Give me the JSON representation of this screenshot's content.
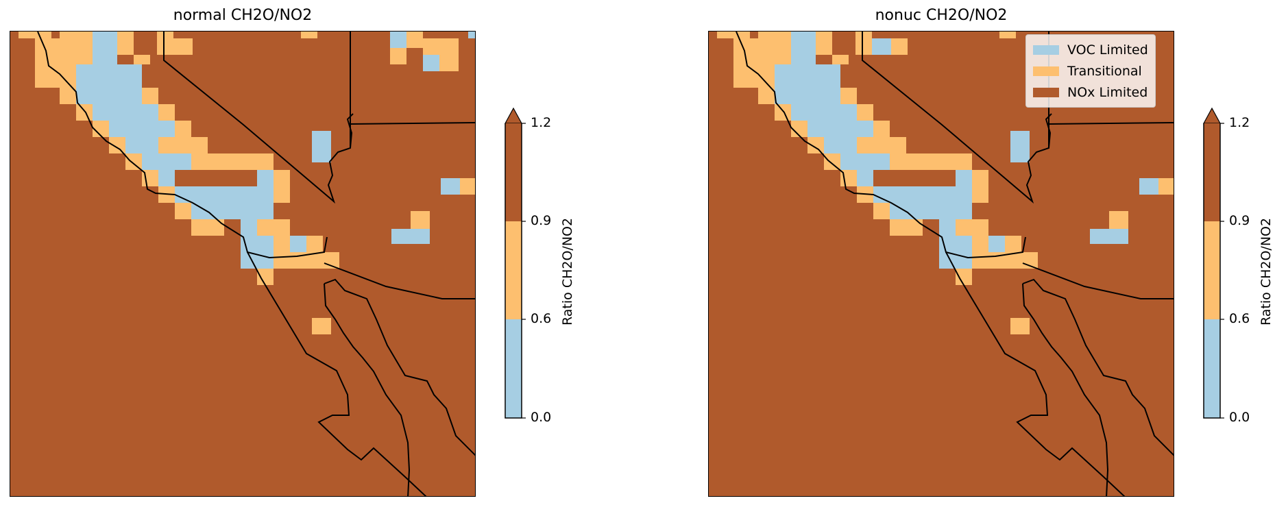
{
  "colors": {
    "voc": "#a6cee3",
    "transitional": "#fdbf6f",
    "nox": "#b05a2c",
    "outline": "#000000"
  },
  "panels": [
    {
      "title": "normal CH2O/NO2",
      "colorbar": {
        "label": "Ratio CH2O/NO2",
        "ticks": [
          "0.0",
          "0.6",
          "0.9",
          "1.2"
        ]
      }
    },
    {
      "title": "nonuc CH2O/NO2",
      "colorbar": {
        "label": "Ratio CH2O/NO2",
        "ticks": [
          "0.0",
          "0.6",
          "0.9",
          "1.2"
        ]
      },
      "legend": [
        {
          "label": "VOC Limited",
          "color": "voc"
        },
        {
          "label": "Transitional",
          "color": "transitional"
        },
        {
          "label": "NOx Limited",
          "color": "nox"
        }
      ]
    }
  ]
}
